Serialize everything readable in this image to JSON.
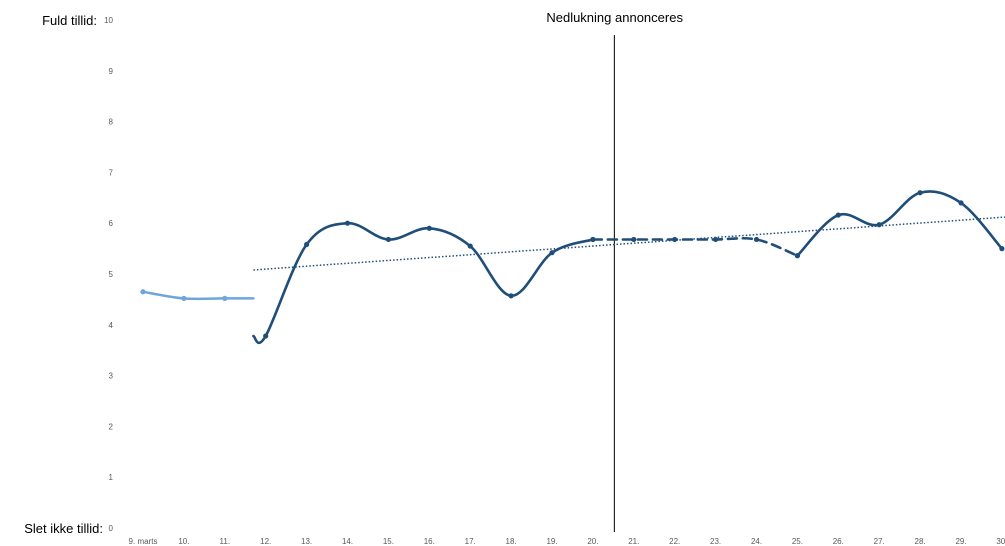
{
  "chart_data": {
    "type": "line",
    "ylim": [
      0,
      10
    ],
    "y_ticks": [
      "0",
      "1",
      "2",
      "3",
      "4",
      "5",
      "6",
      "7",
      "8",
      "9",
      "10"
    ],
    "y_top_label": "Fuld tillid:",
    "y_bottom_label": "Slet ikke tillid:",
    "categories": [
      "9. marts",
      "10.",
      "11.",
      "12.",
      "13.",
      "14.",
      "15.",
      "16.",
      "17.",
      "18.",
      "19.",
      "20.",
      "21.",
      "22.",
      "23.",
      "24.",
      "25.",
      "26.",
      "27.",
      "28.",
      "29.",
      "30."
    ],
    "annotation": {
      "text": "Nedlukning annonceres",
      "x_category": "11.5"
    },
    "series": [
      {
        "style": "solid-light",
        "color": "#6ea6d9",
        "x": [
          0,
          1,
          2,
          2.7
        ],
        "values": [
          4.65,
          4.52,
          4.52,
          4.52
        ]
      },
      {
        "style": "solid-dark",
        "color": "#1f4e79",
        "x": [
          2.7,
          3,
          4,
          5,
          6,
          7,
          8,
          9,
          10,
          11
        ],
        "values": [
          3.78,
          3.78,
          5.58,
          6.0,
          5.68,
          5.9,
          5.55,
          4.57,
          5.42,
          5.68
        ],
        "markers": [
          false,
          true,
          true,
          true,
          true,
          true,
          true,
          true,
          true,
          true
        ]
      },
      {
        "style": "dashed-dark",
        "color": "#1f4e79",
        "x": [
          11,
          12,
          13,
          14,
          15,
          16
        ],
        "values": [
          5.68,
          5.68,
          5.68,
          5.68,
          5.68,
          5.36
        ],
        "markers": [
          true,
          true,
          true,
          true,
          true,
          true
        ]
      },
      {
        "style": "solid-dark",
        "color": "#1f4e79",
        "x": [
          16,
          17,
          18,
          19,
          20,
          21
        ],
        "values": [
          5.36,
          6.16,
          5.97,
          6.6,
          6.4,
          5.5
        ],
        "markers": [
          true,
          true,
          true,
          true,
          true,
          true
        ]
      }
    ],
    "trendline": {
      "style": "dotted",
      "color": "#1f4e79",
      "x": [
        2.7,
        21.6
      ],
      "values": [
        5.08,
        6.15
      ]
    }
  }
}
